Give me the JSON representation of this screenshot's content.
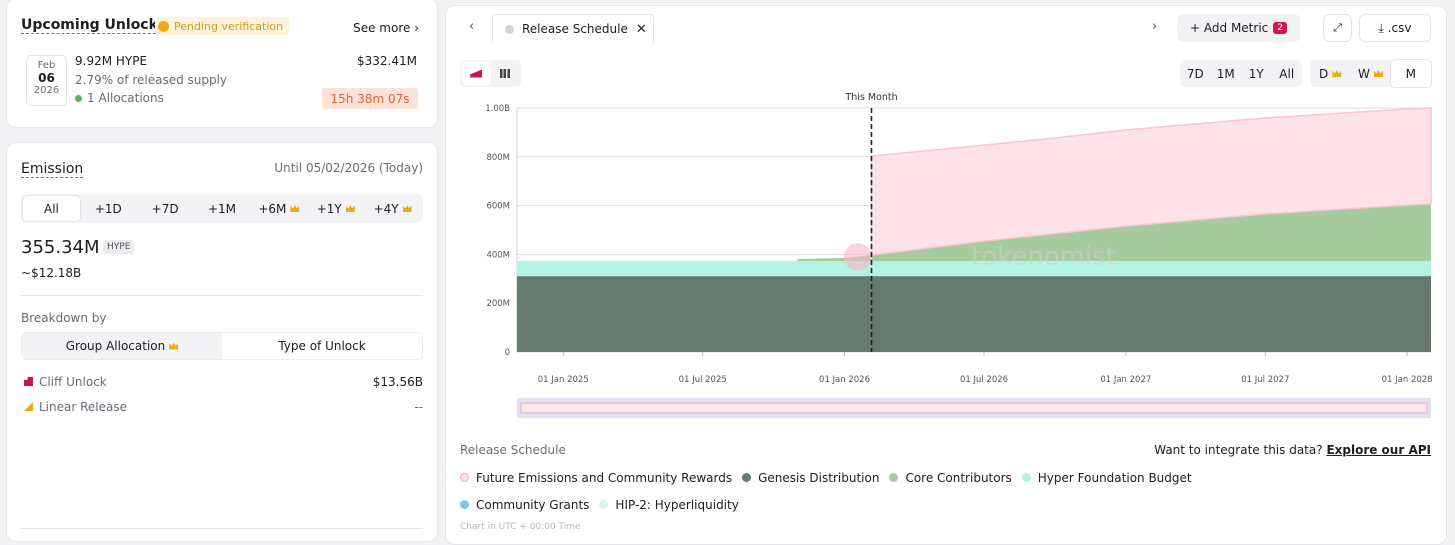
{
  "upcoming_unlocks": {
    "title": "Upcoming Unlocks",
    "badge": "Pending verification",
    "see_more": "See more",
    "date": {
      "month": "Feb",
      "day": "06",
      "year": "2026"
    },
    "amount": "9.92M HYPE",
    "value": "$332.41M",
    "supply": "2.79% of released supply",
    "allocations": "1 Allocations",
    "countdown": "15h 38m 07s"
  },
  "emission": {
    "title": "Emission",
    "until": "Until 05/02/2026 (Today)",
    "ranges": [
      "All",
      "+1D",
      "+7D",
      "+1M",
      "+6M",
      "+1Y",
      "+4Y"
    ],
    "amount": "355.34M",
    "token": "HYPE",
    "usd": "~$12.18B",
    "breakdown_label": "Breakdown by",
    "breakdown_tabs": [
      "Group Allocation",
      "Type of Unlock"
    ],
    "rows": [
      {
        "label": "Cliff Unlock",
        "value": "$13.56B"
      },
      {
        "label": "Linear Release",
        "value": "--"
      }
    ]
  },
  "toolbar": {
    "tab": "Release Schedule",
    "add_metric": "Add Metric",
    "metric_count": "2",
    "csv": ".csv",
    "ranges": [
      "7D",
      "1M",
      "1Y",
      "All"
    ],
    "granularity": [
      "D",
      "W",
      "M"
    ]
  },
  "chart_data": {
    "type": "area",
    "stacked": true,
    "grid": true,
    "annotation": {
      "text": "This Month",
      "x": "2026-02-05"
    },
    "watermark": "tokenomist",
    "x": [
      "2024-11-02",
      "2025-01-01",
      "2025-07-01",
      "2025-11-01",
      "2026-01-01",
      "2026-02-05",
      "2026-07-01",
      "2026-10-01",
      "2027-01-01",
      "2027-07-01",
      "2028-01-01",
      "2028-02-01"
    ],
    "xlim": [
      "2024-11-02",
      "2028-02-01"
    ],
    "xticks": [
      {
        "value": "2025-01-01",
        "label": "01 Jan 2025"
      },
      {
        "value": "2025-07-01",
        "label": "01 Jul 2025"
      },
      {
        "value": "2026-01-01",
        "label": "01 Jan 2026"
      },
      {
        "value": "2026-07-01",
        "label": "01 Jul 2026"
      },
      {
        "value": "2027-01-01",
        "label": "01 Jan 2027"
      },
      {
        "value": "2027-07-01",
        "label": "01 Jul 2027"
      },
      {
        "value": "2028-01-01",
        "label": "01 Jan 2028"
      }
    ],
    "ylim": [
      0,
      1000000000
    ],
    "yticks": [
      0,
      {
        "value": 200000000,
        "label": "200M"
      },
      {
        "value": 400000000,
        "label": "400M"
      },
      {
        "value": 600000000,
        "label": "600M"
      },
      {
        "value": 800000000,
        "label": "800M"
      },
      {
        "value": 1000000000,
        "label": "1.00B"
      }
    ],
    "series": [
      {
        "name": "Genesis Distribution",
        "color": "#66796f",
        "values": [
          311000000,
          311000000,
          311000000,
          311000000,
          311000000,
          311000000,
          311000000,
          311000000,
          311000000,
          311000000,
          311000000,
          311000000
        ]
      },
      {
        "name": "Hyper Foundation Budget",
        "color": "#b3f3e3",
        "values": [
          62000000,
          62000000,
          62000000,
          62000000,
          62000000,
          62000000,
          62000000,
          62000000,
          62000000,
          62000000,
          62000000,
          62000000
        ]
      },
      {
        "name": "Core Contributors",
        "color": "#a6cb9d",
        "values": [
          null,
          null,
          null,
          8000000,
          12000000,
          24000000,
          82000000,
          112000000,
          143000000,
          193000000,
          229000000,
          234000000
        ]
      },
      {
        "name": "Future Emissions and Community Rewards",
        "color": "#fde3e9",
        "values": [
          null,
          null,
          null,
          null,
          null,
          406000000,
          393000000,
          392000000,
          394000000,
          393000000,
          394000000,
          394000000
        ]
      },
      {
        "name": "Community Grants",
        "color": "#7cc4ef",
        "values": [
          0,
          0,
          0,
          0,
          0,
          0,
          0,
          0,
          0,
          0,
          0,
          0
        ]
      },
      {
        "name": "HIP-2: Hyperliquidity",
        "color": "#d3f6f2",
        "values": [
          0,
          0,
          0,
          0,
          0,
          0,
          0,
          0,
          0,
          0,
          0,
          0
        ]
      }
    ]
  },
  "footer": {
    "title": "Release Schedule",
    "api_prompt": "Want to integrate this data?",
    "api_link": "Explore our API",
    "timezone": "Chart in UTC + 00:00 Time"
  }
}
